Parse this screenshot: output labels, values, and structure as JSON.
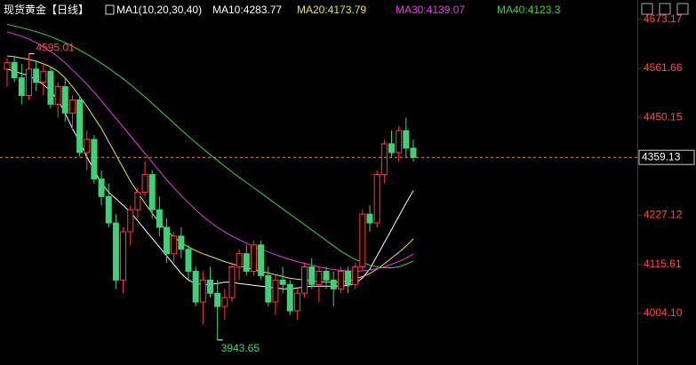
{
  "chart_data": {
    "type": "candlestick",
    "title": "现货黄金【日线】",
    "indicator": "MA1(10,20,30,40)",
    "open": [
      4560,
      4575,
      4540,
      4500,
      4560,
      4530,
      4555,
      4480,
      4520,
      4460,
      4490,
      4370,
      4400,
      4310,
      4270,
      4210,
      4080,
      4190,
      4240,
      4280,
      4320,
      4240,
      4200,
      4140,
      4180,
      4150,
      4100,
      4030,
      4080,
      4050,
      4020,
      4040,
      4110,
      4140,
      4100,
      4160,
      4090,
      4030,
      4080,
      4070,
      4010,
      4050,
      4110,
      4070,
      4100,
      4080,
      4060,
      4100,
      4070,
      4110,
      4230,
      4210,
      4320,
      4390,
      4370,
      4420,
      4380
    ],
    "high": [
      4585,
      4590,
      4572,
      4595.01,
      4580,
      4570,
      4565,
      4530,
      4540,
      4500,
      4500,
      4420,
      4410,
      4330,
      4300,
      4230,
      4200,
      4250,
      4290,
      4350,
      4330,
      4270,
      4220,
      4190,
      4200,
      4160,
      4110,
      4100,
      4110,
      4080,
      4060,
      4120,
      4150,
      4160,
      4170,
      4170,
      4110,
      4090,
      4110,
      4080,
      4060,
      4120,
      4130,
      4110,
      4110,
      4100,
      4110,
      4110,
      4120,
      4240,
      4250,
      4330,
      4400,
      4420,
      4430,
      4449.59,
      4400
    ],
    "low": [
      4520,
      4530,
      4480,
      4490,
      4510,
      4500,
      4470,
      4450,
      4440,
      4420,
      4360,
      4330,
      4300,
      4250,
      4200,
      4060,
      4050,
      4160,
      4220,
      4270,
      4220,
      4180,
      4120,
      4120,
      4130,
      4080,
      4020,
      3980,
      4040,
      3943.65,
      3990,
      4030,
      4080,
      4090,
      4090,
      4080,
      4020,
      4000,
      4050,
      4000,
      3990,
      4040,
      4060,
      4030,
      4060,
      4020,
      4050,
      4050,
      4060,
      4100,
      4190,
      4200,
      4300,
      4360,
      4350,
      4360,
      4350
    ],
    "close": [
      4575,
      4540,
      4500,
      4560,
      4530,
      4555,
      4480,
      4520,
      4460,
      4490,
      4370,
      4400,
      4310,
      4270,
      4210,
      4080,
      4190,
      4240,
      4280,
      4320,
      4240,
      4200,
      4140,
      4180,
      4150,
      4100,
      4030,
      4080,
      4050,
      4020,
      4040,
      4110,
      4140,
      4100,
      4160,
      4090,
      4030,
      4080,
      4070,
      4010,
      4050,
      4110,
      4070,
      4100,
      4080,
      4060,
      4100,
      4070,
      4110,
      4230,
      4210,
      4320,
      4390,
      4370,
      4420,
      4380,
      4359.13
    ],
    "up_color": "#ff3b3b",
    "down_color": "#3fd17a",
    "series": [
      {
        "name": "MA10:",
        "color": "#ffffff",
        "values": [
          4560,
          4555,
          4550,
          4545,
          4535,
          4525,
          4510,
          4490,
          4460,
          4425,
          4395,
          4360,
          4330,
          4300,
          4280,
          4265,
          4250,
          4235,
          4215,
          4195,
          4175,
          4155,
          4135,
          4115,
          4095,
          4080,
          4072,
          4070,
          4070,
          4072,
          4075,
          4075,
          4072,
          4070,
          4068,
          4066,
          4064,
          4062,
          4060,
          4060,
          4062,
          4064,
          4066,
          4066,
          4066,
          4066,
          4066,
          4068,
          4072,
          4085,
          4105,
          4135,
          4165,
          4195,
          4225,
          4255,
          4283.77
        ]
      },
      {
        "name": "MA20:",
        "color": "#e6e64a",
        "values": [
          4590,
          4588,
          4585,
          4582,
          4578,
          4572,
          4565,
          4555,
          4540,
          4520,
          4498,
          4475,
          4450,
          4425,
          4395,
          4365,
          4335,
          4305,
          4280,
          4255,
          4232,
          4210,
          4192,
          4178,
          4165,
          4155,
          4147,
          4140,
          4134,
          4128,
          4122,
          4117,
          4112,
          4108,
          4104,
          4100,
          4096,
          4092,
          4088,
          4084,
          4082,
          4080,
          4078,
          4076,
          4075,
          4075,
          4076,
          4078,
          4082,
          4088,
          4095,
          4105,
          4117,
          4130,
          4143,
          4157,
          4173.79
        ]
      },
      {
        "name": "MA30:",
        "color": "#e040e0",
        "values": [
          4645,
          4640,
          4635,
          4628,
          4620,
          4610,
          4600,
          4588,
          4574,
          4558,
          4542,
          4525,
          4507,
          4488,
          4468,
          4448,
          4428,
          4408,
          4388,
          4368,
          4348,
          4328,
          4308,
          4290,
          4272,
          4256,
          4240,
          4225,
          4212,
          4200,
          4190,
          4180,
          4172,
          4164,
          4156,
          4150,
          4144,
          4138,
          4132,
          4127,
          4122,
          4118,
          4114,
          4110,
          4107,
          4104,
          4102,
          4101,
          4100,
          4101,
          4103,
          4106,
          4110,
          4116,
          4122,
          4130,
          4139.07
        ]
      },
      {
        "name": "MA40:",
        "color": "#3fcf3f",
        "values": [
          4662,
          4658,
          4654,
          4650,
          4645,
          4640,
          4634,
          4627,
          4620,
          4612,
          4603,
          4594,
          4584,
          4573,
          4562,
          4550,
          4538,
          4525,
          4511,
          4497,
          4482,
          4467,
          4452,
          4437,
          4422,
          4407,
          4393,
          4379,
          4365,
          4352,
          4339,
          4326,
          4314,
          4302,
          4290,
          4278,
          4266,
          4254,
          4242,
          4230,
          4218,
          4206,
          4194,
          4182,
          4170,
          4158,
          4146,
          4136,
          4127,
          4120,
          4114,
          4110,
          4108,
          4108,
          4110,
          4116,
          4123.3
        ]
      }
    ],
    "ylim": [
      3909,
      4697
    ],
    "yticks": [
      {
        "value": 4004.1,
        "label": "4004.10"
      },
      4115.61,
      4227.12,
      4450.15,
      4561.66,
      4673.17
    ]
  }
}
